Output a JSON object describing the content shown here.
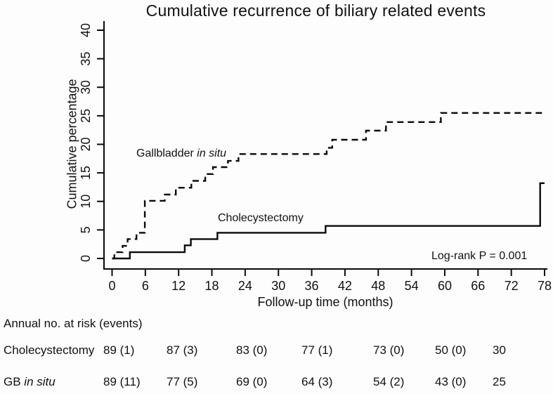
{
  "title": "Cumulative recurrence of biliary related events",
  "colors": {
    "line": "#0a0a0a",
    "background": "#fdfdfd",
    "text": "#111111"
  },
  "chart_data": {
    "type": "line",
    "subtype": "kaplan-meier-cumulative-step",
    "title": "Cumulative recurrence of biliary related events",
    "xlabel": "Follow-up time (months)",
    "ylabel": "Cumulative percentage",
    "xlim": [
      0,
      78
    ],
    "ylim": [
      0,
      40
    ],
    "x_ticks": [
      0,
      6,
      12,
      18,
      24,
      30,
      36,
      42,
      48,
      54,
      60,
      66,
      72,
      78
    ],
    "y_ticks": [
      0,
      5,
      10,
      15,
      20,
      25,
      30,
      35,
      40
    ],
    "grid": false,
    "legend_position": "in-plot-labels",
    "annotation": "Log-rank P = 0.001",
    "series": [
      {
        "name": "Gallbladder in situ",
        "line_style": "dashed",
        "points": [
          [
            0,
            0
          ],
          [
            0.4,
            1.1
          ],
          [
            1.9,
            2.2
          ],
          [
            2.8,
            3.4
          ],
          [
            4.4,
            4.5
          ],
          [
            5.9,
            10.1
          ],
          [
            9.5,
            11.2
          ],
          [
            11.5,
            12.4
          ],
          [
            14.3,
            13.6
          ],
          [
            16.8,
            14.8
          ],
          [
            18.2,
            16.0
          ],
          [
            20.9,
            17.1
          ],
          [
            22.8,
            18.3
          ],
          [
            38.7,
            19.4
          ],
          [
            39.7,
            20.8
          ],
          [
            45.8,
            22.4
          ],
          [
            49.4,
            23.9
          ],
          [
            59.3,
            25.5
          ],
          [
            78,
            25.5
          ]
        ]
      },
      {
        "name": "Cholecystectomy",
        "line_style": "solid",
        "points": [
          [
            0,
            0
          ],
          [
            3.2,
            1.1
          ],
          [
            13.1,
            2.3
          ],
          [
            14.2,
            3.4
          ],
          [
            19.0,
            4.5
          ],
          [
            38.5,
            5.7
          ],
          [
            77.2,
            13.2
          ],
          [
            78,
            13.2
          ]
        ]
      }
    ]
  },
  "labels": {
    "gallbladder_prefix": "Gallbladder ",
    "gallbladder_italic": "in situ",
    "cholecystectomy": "Cholecystectomy",
    "logrank": "Log-rank P = 0.001"
  },
  "risk_table": {
    "heading": "Annual no. at risk (events)",
    "rows": [
      {
        "label": "Cholecystectomy",
        "label_italic": "",
        "cells": [
          "89 (1)",
          "87 (3)",
          "83 (0)",
          "77 (1)",
          "73 (0)",
          "50 (0)",
          "30"
        ]
      },
      {
        "label": "GB ",
        "label_italic": "in situ",
        "cells": [
          "89 (11)",
          "77 (5)",
          "69 (0)",
          "64 (3)",
          "54 (2)",
          "43 (0)",
          "25"
        ]
      }
    ]
  }
}
